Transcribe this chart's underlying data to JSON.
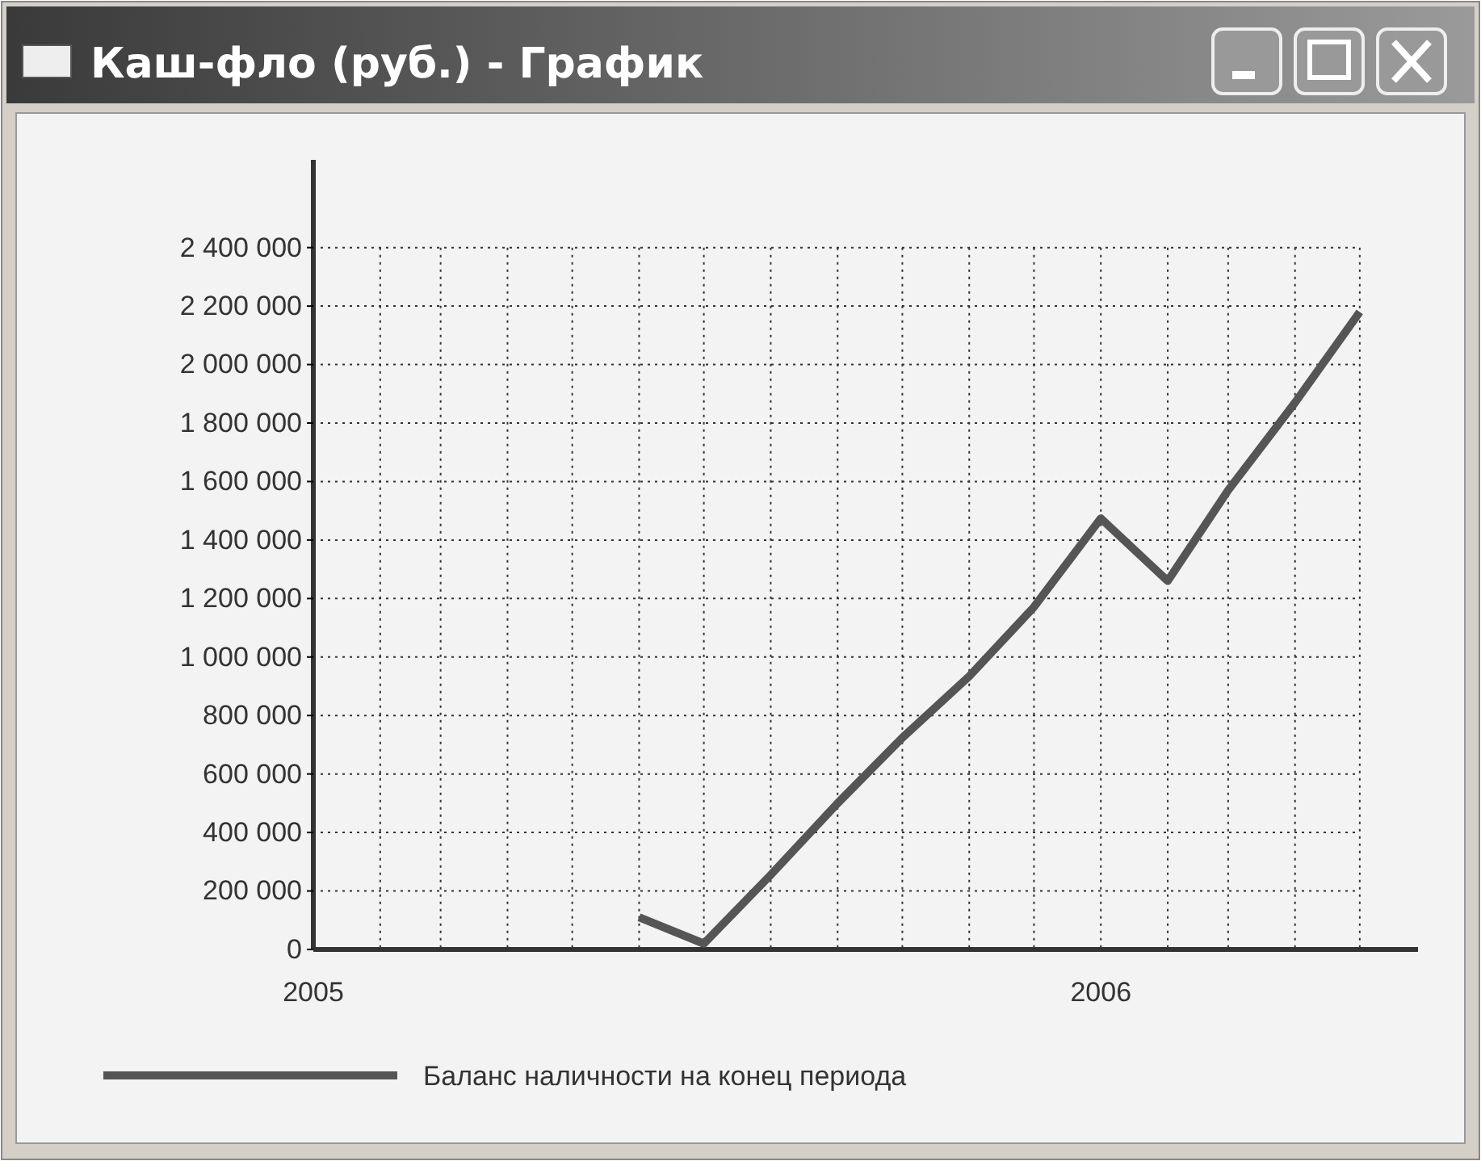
{
  "chart_data": {
    "type": "line",
    "title": "Каш-фло (руб.) - График",
    "x": [
      "2005-06",
      "2005-07",
      "2005-08",
      "2005-09",
      "2005-10",
      "2005-11",
      "2005-12",
      "2006-01",
      "2006-02",
      "2006-03",
      "2006-04",
      "2006-05"
    ],
    "series": [
      {
        "name": "Баланс наличности на конец периода",
        "color": "#555555",
        "values": [
          110000,
          20000,
          255000,
          500000,
          724000,
          934000,
          1171000,
          1474000,
          1260000,
          1570000,
          1870000,
          2180000
        ]
      }
    ],
    "xlim": [
      "2005-01",
      "2006-05-28"
    ],
    "xticks": [
      {
        "value": "2005-01",
        "label": "2005"
      },
      {
        "value": "2005-02",
        "label": null
      },
      {
        "value": "2005-03",
        "label": null
      },
      {
        "value": "2005-04",
        "label": null
      },
      {
        "value": "2005-05",
        "label": null
      },
      {
        "value": "2005-06",
        "label": null
      },
      {
        "value": "2005-07",
        "label": null
      },
      {
        "value": "2005-08",
        "label": null
      },
      {
        "value": "2005-09",
        "label": null
      },
      {
        "value": "2005-10",
        "label": null
      },
      {
        "value": "2005-11",
        "label": null
      },
      {
        "value": "2005-12",
        "label": null
      },
      {
        "value": "2006-01",
        "label": "2006"
      },
      {
        "value": "2006-02",
        "label": null
      },
      {
        "value": "2006-03",
        "label": null
      },
      {
        "value": "2006-04",
        "label": null
      },
      {
        "value": "2006-05",
        "label": null
      }
    ],
    "ylim": [
      0,
      2700000
    ],
    "yticks": [
      0,
      {
        "value": 200000,
        "label": "200 000"
      },
      {
        "value": 400000,
        "label": "400 000"
      },
      {
        "value": 600000,
        "label": "600 000"
      },
      {
        "value": 800000,
        "label": "800 000"
      },
      {
        "value": 1000000,
        "label": "1 000 000"
      },
      {
        "value": 1200000,
        "label": "1 200 000"
      },
      {
        "value": 1400000,
        "label": "1 400 000"
      },
      {
        "value": 1600000,
        "label": "1 600 000"
      },
      {
        "value": 1800000,
        "label": "1 800 000"
      },
      {
        "value": 2000000,
        "label": "2 000 000"
      },
      {
        "value": 2200000,
        "label": "2 200 000"
      },
      {
        "value": 2400000,
        "label": "2 400 000"
      }
    ],
    "grid": true,
    "legend": "bottom",
    "line_style": "solid",
    "marker": "none"
  }
}
